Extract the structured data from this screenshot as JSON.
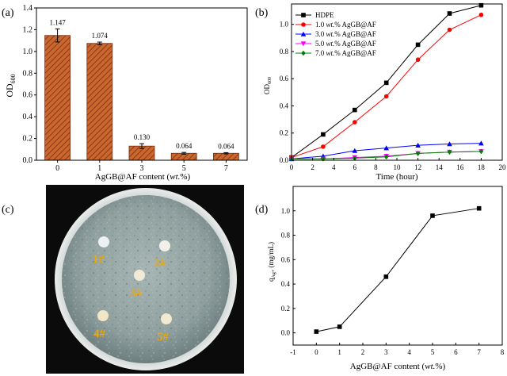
{
  "chart_data": [
    {
      "panel_label": "(a)",
      "type": "bar",
      "categories": [
        "0",
        "1",
        "3",
        "5",
        "7"
      ],
      "values": [
        1.147,
        1.074,
        0.13,
        0.064,
        0.064
      ],
      "value_labels": [
        "1.147",
        "1.074",
        "0.130",
        "0.064",
        "0.064"
      ],
      "errors": [
        0.06,
        0.012,
        0.022,
        0.008,
        0.006
      ],
      "ylabel": "OD",
      "ylabel_sub": "600",
      "xlabel_pre": "AgGB@AF content (",
      "xlabel_it": "wt.",
      "xlabel_post": "%)",
      "ylim": [
        0,
        1.4
      ],
      "yticks": [
        0.0,
        0.2,
        0.4,
        0.6,
        0.8,
        1.0,
        1.2,
        1.4
      ],
      "ytick_labels": [
        "0.0",
        "0.2",
        "0.4",
        "0.6",
        "0.8",
        "1.0",
        "1.2",
        "1.4"
      ],
      "bar_color": "#c9672f",
      "hatch_color": "#7a2e10"
    },
    {
      "panel_label": "(b)",
      "type": "line",
      "x": [
        0,
        3,
        6,
        9,
        12,
        15,
        18
      ],
      "series": [
        {
          "name": "HDPE",
          "name_pre": "HDPE",
          "name_it": "",
          "name_post": "",
          "color": "#000000",
          "marker": "square",
          "values": [
            0.02,
            0.19,
            0.37,
            0.57,
            0.85,
            1.08,
            1.14
          ]
        },
        {
          "name": "1.0 wt.% AgGB@AF",
          "name_pre": "1.0 ",
          "name_it": "wt.",
          "name_post": "% AgGB@AF",
          "color": "#ff0000",
          "marker": "circle",
          "values": [
            0.02,
            0.1,
            0.28,
            0.47,
            0.74,
            0.96,
            1.07
          ]
        },
        {
          "name": "3.0 wt.% AgGB@AF",
          "name_pre": "3.0 ",
          "name_it": "wt.",
          "name_post": "% AgGB@AF",
          "color": "#0000ff",
          "marker": "triangle-up",
          "values": [
            0.01,
            0.03,
            0.07,
            0.09,
            0.11,
            0.12,
            0.125
          ]
        },
        {
          "name": "5.0 wt.% AgGB@AF",
          "name_pre": "5.0 ",
          "name_it": "wt.",
          "name_post": "% AgGB@AF",
          "color": "#ff00ff",
          "marker": "triangle-down",
          "values": [
            0.01,
            0.01,
            0.02,
            0.03,
            0.05,
            0.06,
            0.065
          ]
        },
        {
          "name": "7.0 wt.% AgGB@AF",
          "name_pre": "7.0 ",
          "name_it": "wt.",
          "name_post": "% AgGB@AF",
          "color": "#008000",
          "marker": "diamond",
          "values": [
            0.01,
            0.01,
            0.015,
            0.025,
            0.05,
            0.06,
            0.065
          ]
        }
      ],
      "xlabel": "Time (hour)",
      "ylabel": "OD",
      "ylabel_sub": "600",
      "xlim": [
        0,
        20
      ],
      "ylim": [
        0,
        1.15
      ],
      "xticks": [
        0,
        2,
        4,
        6,
        8,
        10,
        12,
        14,
        16,
        18,
        20
      ],
      "yticks": [
        0.0,
        0.2,
        0.4,
        0.6,
        0.8,
        1.0
      ],
      "ytick_labels": [
        "0.0",
        "0.2",
        "0.4",
        "0.6",
        "0.8",
        "1.0"
      ]
    },
    {
      "panel_label": "(d)",
      "type": "line",
      "x": [
        0,
        1,
        3,
        5,
        7
      ],
      "series": [
        {
          "name": "q Ag+",
          "color": "#000000",
          "marker": "square",
          "values": [
            0.01,
            0.05,
            0.46,
            0.96,
            1.02
          ]
        }
      ],
      "xlabel_pre": "AgGB@AF content (",
      "xlabel_it": "wt.",
      "xlabel_post": "%)",
      "ylabel_main": "q",
      "ylabel_sub": "Ag+",
      "ylabel_unit": " (mg/mL)",
      "xlim": [
        -1,
        8
      ],
      "ylim": [
        -0.1,
        1.2
      ],
      "xticks": [
        -1,
        0,
        1,
        2,
        3,
        4,
        5,
        6,
        7,
        8
      ],
      "yticks": [
        0.0,
        0.2,
        0.4,
        0.6,
        0.8,
        1.0
      ],
      "ytick_labels": [
        "0.0",
        "0.2",
        "0.4",
        "0.6",
        "0.8",
        "1.0"
      ]
    }
  ],
  "photo": {
    "panel_label": "(c)",
    "sample_labels": [
      "1#",
      "2#",
      "3#",
      "4#",
      "5#"
    ],
    "label_color": "#e6a817"
  }
}
